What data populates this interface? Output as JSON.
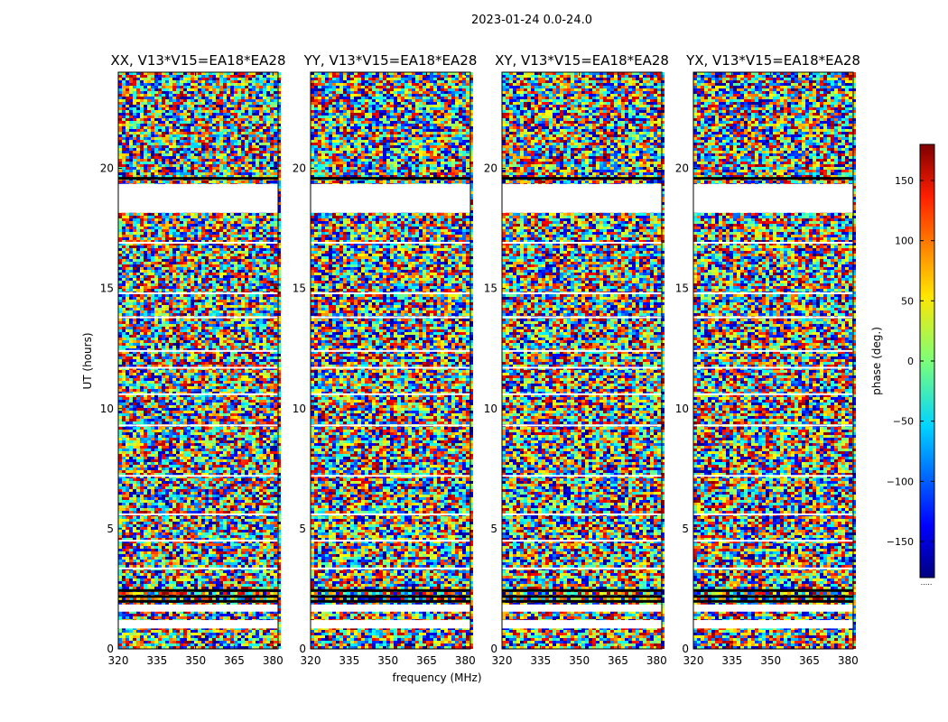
{
  "figure_title": "2023-01-24 0.0-24.0",
  "chart_data": {
    "type": "heatmap",
    "title": "2023-01-24 0.0-24.0",
    "xlabel": "frequency (MHz)",
    "ylabel": "UT (hours)",
    "xlim": [
      320,
      382
    ],
    "ylim": [
      0,
      24
    ],
    "x_ticks": [
      320,
      335,
      350,
      365,
      380
    ],
    "y_ticks": [
      0,
      5,
      10,
      15,
      20
    ],
    "panels": [
      {
        "title": "XX, V13*V15=EA18*EA28",
        "polarization": "XX",
        "baseline": "V13*V15=EA18*EA28"
      },
      {
        "title": "YY, V13*V15=EA18*EA28",
        "polarization": "YY",
        "baseline": "V13*V15=EA18*EA28"
      },
      {
        "title": "XY, V13*V15=EA18*EA28",
        "polarization": "XY",
        "baseline": "V13*V15=EA18*EA28"
      },
      {
        "title": "YX, V13*V15=EA18*EA28",
        "polarization": "YX",
        "baseline": "V13*V15=EA18*EA28"
      }
    ],
    "value_field": "visibility phase (random-looking, per channel/time)",
    "flagged_ut_ranges": [
      [
        0.85,
        1.2
      ],
      [
        1.55,
        1.85
      ],
      [
        18.15,
        19.35
      ]
    ],
    "dark_ut_lines": [
      2.0,
      2.2,
      2.45,
      19.6
    ],
    "white_ut_lines": [
      3.35,
      4.5,
      5.6,
      7.2,
      9.3,
      10.6,
      11.7,
      12.4,
      13.8,
      14.8,
      16.9
    ],
    "colorbar": {
      "label": "phase (deg.)",
      "range": [
        -180,
        180
      ],
      "ticks": [
        150,
        100,
        50,
        0,
        -50,
        -100,
        -150
      ],
      "tick_labels": [
        "150",
        "100",
        "50",
        "0",
        "−50",
        "−100",
        "−150"
      ],
      "colormap": "jet",
      "under_label": "....."
    }
  }
}
